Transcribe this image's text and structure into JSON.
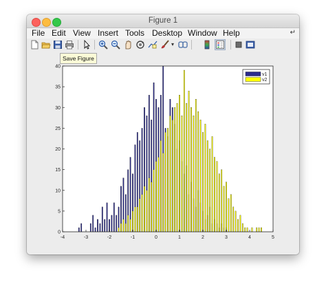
{
  "window": {
    "title": "Figure 1"
  },
  "menu": [
    "File",
    "Edit",
    "View",
    "Insert",
    "Tools",
    "Desktop",
    "Window",
    "Help"
  ],
  "menu_overflow_icon": "expand-arrow-icon",
  "toolbar": {
    "icons": [
      "new-figure-icon",
      "open-file-icon",
      "save-figure-icon",
      "print-icon",
      "pointer-icon",
      "zoom-in-icon",
      "zoom-out-icon",
      "pan-icon",
      "rotate-3d-icon",
      "data-cursor-icon",
      "brush-icon",
      "dropdown-arrow-icon",
      "link-plot-icon",
      "colorbar-icon",
      "legend-icon",
      "hide-plot-tools-icon",
      "show-plot-tools-icon"
    ]
  },
  "tooltip": {
    "text": "Save Figure"
  },
  "chart_data": {
    "type": "bar",
    "title": "",
    "xlabel": "",
    "ylabel": "",
    "xlim": [
      -4,
      5
    ],
    "ylim": [
      0,
      40
    ],
    "xticks": [
      "-4",
      "-3",
      "-2",
      "-1",
      "0",
      "1",
      "2",
      "3",
      "4",
      "5"
    ],
    "yticks": [
      "0",
      "5",
      "10",
      "15",
      "20",
      "25",
      "30",
      "35",
      "40"
    ],
    "legend_position": "top-right",
    "bin_width": 0.1,
    "series": [
      {
        "name": "v1",
        "color": "#2b2b8c",
        "x": [
          -3.3,
          -3.2,
          -3.1,
          -3.0,
          -2.9,
          -2.8,
          -2.7,
          -2.6,
          -2.5,
          -2.4,
          -2.3,
          -2.2,
          -2.1,
          -2.0,
          -1.9,
          -1.8,
          -1.7,
          -1.6,
          -1.5,
          -1.4,
          -1.3,
          -1.2,
          -1.1,
          -1.0,
          -0.9,
          -0.8,
          -0.7,
          -0.6,
          -0.5,
          -0.4,
          -0.3,
          -0.2,
          -0.1,
          0.0,
          0.1,
          0.2,
          0.3,
          0.4,
          0.5,
          0.6,
          0.7,
          0.8,
          0.9,
          1.0,
          1.1,
          1.2,
          1.3,
          1.4,
          1.5,
          1.6,
          1.7,
          1.8,
          1.9,
          2.0,
          2.1,
          2.2,
          2.3,
          2.4,
          2.5,
          2.6,
          2.7,
          2.8,
          2.9,
          3.0
        ],
        "values": [
          1,
          2,
          0,
          0,
          0,
          2,
          4,
          1,
          3,
          2,
          6,
          3,
          7,
          3,
          4,
          7,
          4,
          6,
          11,
          13,
          9,
          15,
          18,
          14,
          21,
          24,
          22,
          25,
          30,
          28,
          33,
          27,
          36,
          32,
          30,
          33,
          40,
          25,
          23,
          32,
          30,
          26,
          20,
          22,
          17,
          14,
          16,
          9,
          12,
          8,
          6,
          10,
          7,
          5,
          3,
          4,
          6,
          2,
          3,
          2,
          1,
          2,
          1,
          1
        ]
      },
      {
        "name": "v2",
        "color": "#ffff00",
        "x": [
          -1.6,
          -1.5,
          -1.4,
          -1.3,
          -1.2,
          -1.1,
          -1.0,
          -0.9,
          -0.8,
          -0.7,
          -0.6,
          -0.5,
          -0.4,
          -0.3,
          -0.2,
          -0.1,
          0.0,
          0.1,
          0.2,
          0.3,
          0.4,
          0.5,
          0.6,
          0.7,
          0.8,
          0.9,
          1.0,
          1.1,
          1.2,
          1.3,
          1.4,
          1.5,
          1.6,
          1.7,
          1.8,
          1.9,
          2.0,
          2.1,
          2.2,
          2.3,
          2.4,
          2.5,
          2.6,
          2.7,
          2.8,
          2.9,
          3.0,
          3.1,
          3.2,
          3.3,
          3.4,
          3.5,
          3.6,
          3.7,
          3.8,
          3.9,
          4.0,
          4.1,
          4.2,
          4.3,
          4.4,
          4.5
        ],
        "values": [
          1,
          2,
          3,
          2,
          4,
          3,
          5,
          6,
          6,
          8,
          9,
          11,
          10,
          13,
          12,
          15,
          17,
          18,
          22,
          19,
          24,
          25,
          28,
          27,
          30,
          31,
          33,
          28,
          39,
          31,
          34,
          30,
          28,
          32,
          29,
          27,
          24,
          26,
          22,
          20,
          23,
          18,
          17,
          14,
          15,
          11,
          12,
          8,
          9,
          6,
          5,
          3,
          4,
          2,
          1,
          1,
          0,
          1,
          0,
          1,
          1,
          1
        ]
      }
    ]
  }
}
